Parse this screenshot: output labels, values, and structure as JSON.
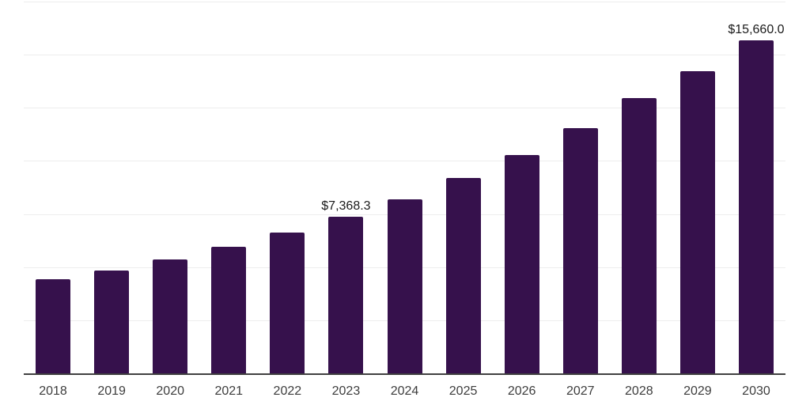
{
  "chart_data": {
    "type": "bar",
    "title": "",
    "xlabel": "",
    "ylabel": "",
    "categories": [
      "2018",
      "2019",
      "2020",
      "2021",
      "2022",
      "2023",
      "2024",
      "2025",
      "2026",
      "2027",
      "2028",
      "2029",
      "2030"
    ],
    "values": [
      4440,
      4850,
      5370,
      5960,
      6620,
      7368.3,
      8210,
      9210,
      10290,
      11540,
      12950,
      14240,
      15660
    ],
    "data_labels": {
      "2023": "$7,368.3",
      "2030": "$15,660.0"
    },
    "ylim": [
      0,
      17500
    ],
    "gridline_step": 2500,
    "grid": true,
    "legend": false,
    "y_axis_labels_visible": false
  },
  "palette": {
    "bar": "#36114C",
    "axis": "#404040",
    "gridline": "#ededed",
    "data_label_text": "#1a1a1a",
    "tick_text": "#3d3d3d",
    "background": "#ffffff"
  }
}
